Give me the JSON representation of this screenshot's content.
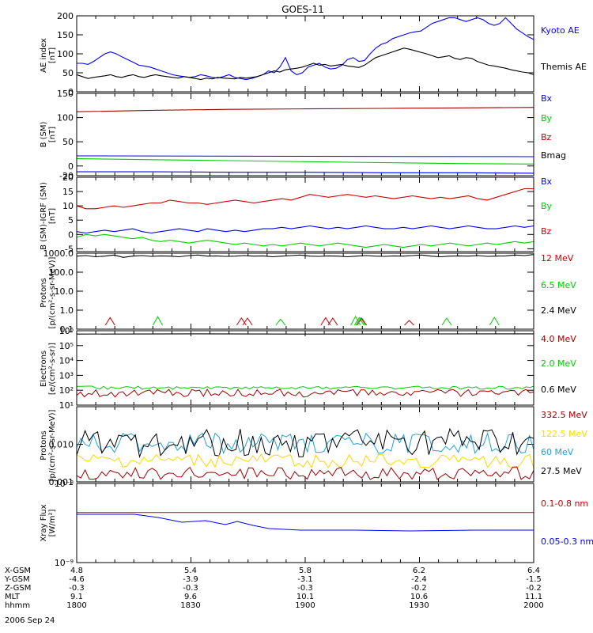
{
  "title": "GOES-11",
  "date_label": "2006 Sep 24",
  "colors": {
    "black": "#000000",
    "blue": "#0000ff",
    "red": "#cc0000",
    "darkred": "#a00000",
    "green": "#00cc00",
    "yellow": "#ffd700",
    "cyan": "#1ea0e0",
    "line_red": "#cc2020"
  },
  "ephemeris": {
    "row_labels": [
      "X-GSM",
      "Y-GSM",
      "Z-GSM",
      "MLT",
      "hhmm"
    ],
    "columns": [
      [
        "4.8",
        "-4.6",
        "-0.3",
        "9.1",
        "1800"
      ],
      [
        "5.4",
        "-3.9",
        "-0.3",
        "9.6",
        "1830"
      ],
      [
        "5.8",
        "-3.1",
        "-0.3",
        "10.1",
        "1900"
      ],
      [
        "6.2",
        "-2.4",
        "-0.2",
        "10.6",
        "1930"
      ],
      [
        "6.4",
        "-1.5",
        "-0.2",
        "11.1",
        "2000"
      ]
    ]
  },
  "chart_data": [
    {
      "type": "line",
      "panel": "ae",
      "ylabel": [
        "AE index",
        "[nT]"
      ],
      "ylim": [
        0,
        200
      ],
      "ytick_values": [
        0,
        50,
        100,
        150,
        200
      ],
      "ytick_labels": [
        "0",
        "50",
        "100",
        "150",
        "200"
      ],
      "series": [
        {
          "name": "Kyoto AE",
          "color": "blue",
          "values": [
            75,
            75,
            72,
            80,
            90,
            100,
            105,
            100,
            92,
            85,
            78,
            70,
            68,
            65,
            60,
            55,
            50,
            45,
            42,
            40,
            38,
            40,
            45,
            42,
            38,
            36,
            40,
            45,
            38,
            35,
            32,
            35,
            40,
            45,
            55,
            50,
            65,
            90,
            55,
            45,
            50,
            65,
            70,
            75,
            65,
            60,
            62,
            70,
            85,
            90,
            80,
            82,
            100,
            115,
            125,
            130,
            140,
            145,
            150,
            155,
            158,
            160,
            170,
            180,
            185,
            190,
            195,
            195,
            190,
            185,
            190,
            195,
            190,
            180,
            175,
            180,
            195,
            180,
            165,
            155,
            145,
            138
          ]
        },
        {
          "name": "Themis AE",
          "color": "black",
          "values": [
            45,
            40,
            35,
            38,
            40,
            42,
            45,
            40,
            38,
            42,
            45,
            40,
            38,
            42,
            45,
            42,
            40,
            38,
            36,
            40,
            38,
            35,
            32,
            36,
            34,
            38,
            36,
            35,
            34,
            38,
            36,
            38,
            40,
            45,
            50,
            55,
            52,
            58,
            60,
            62,
            65,
            70,
            75,
            70,
            72,
            68,
            70,
            72,
            68,
            66,
            64,
            70,
            80,
            90,
            95,
            100,
            105,
            110,
            115,
            112,
            108,
            104,
            100,
            95,
            90,
            92,
            95,
            88,
            85,
            90,
            88,
            80,
            75,
            70,
            68,
            65,
            62,
            58,
            55,
            52,
            50,
            45
          ]
        }
      ]
    },
    {
      "type": "line",
      "panel": "b",
      "ylabel": [
        "B (SM)",
        "[nT]"
      ],
      "ylim": [
        -20,
        150
      ],
      "ytick_values": [
        -20,
        0,
        50,
        100,
        150
      ],
      "ytick_labels": [
        "-20",
        "0",
        "50",
        "100",
        "150"
      ],
      "series": [
        {
          "name": "Bx",
          "color": "darkred",
          "values": [
            112,
            115,
            117,
            118,
            119,
            120,
            121
          ]
        },
        {
          "name": "By",
          "color": "green",
          "values": [
            15,
            13,
            11,
            9,
            7,
            5,
            4
          ]
        },
        {
          "name": "Bz",
          "color": "blue",
          "values": [
            -12,
            -12,
            -13,
            -13,
            -14,
            -14,
            -15
          ]
        },
        {
          "name": "Bmag",
          "color": "black",
          "values": []
        }
      ],
      "legend_colors": [
        "blue",
        "green",
        "red",
        "black"
      ]
    },
    {
      "type": "line",
      "panel": "bdiff",
      "ylabel": [
        "B (SM)-IGRF (SM)",
        "[nT]"
      ],
      "ylim": [
        -6,
        20
      ],
      "ytick_values": [
        -5,
        0,
        5,
        10,
        15,
        20
      ],
      "ytick_labels": [
        "-5",
        "0",
        "5",
        "10",
        "15",
        "20"
      ],
      "series": [
        {
          "name": "Bx",
          "color": "blue",
          "values": [
            1,
            0.5,
            1,
            1.5,
            1,
            1.5,
            2,
            1,
            0.5,
            1,
            1.5,
            2,
            1.5,
            1,
            2,
            1.5,
            1,
            1.5,
            1,
            1.5,
            2,
            2,
            2.5,
            2,
            2.5,
            3,
            2.5,
            2,
            2.5,
            2,
            2.5,
            3,
            2.5,
            2,
            2,
            2.5,
            2,
            2.5,
            3,
            2.5,
            2,
            2.5,
            3,
            2.5,
            2,
            2,
            2.5,
            3,
            2.5,
            3
          ]
        },
        {
          "name": "By",
          "color": "green",
          "values": [
            -1,
            0,
            -0.5,
            0,
            -0.5,
            -1,
            -1.5,
            -1,
            -2,
            -2.5,
            -2,
            -2.5,
            -3,
            -2.5,
            -2,
            -2.5,
            -3,
            -3.5,
            -3,
            -3.5,
            -4,
            -3.5,
            -4,
            -3.5,
            -3,
            -3.5,
            -4,
            -3.5,
            -3,
            -3.5,
            -4,
            -4.5,
            -4,
            -3.5,
            -4,
            -4.5,
            -4,
            -3.5,
            -4,
            -3.5,
            -3,
            -3.5,
            -4,
            -3.5,
            -3,
            -3.5,
            -3,
            -2.5,
            -3,
            -2.5
          ]
        },
        {
          "name": "Bz",
          "color": "red",
          "values": [
            10,
            9,
            9,
            9.5,
            10,
            9.5,
            10,
            10.5,
            11,
            11,
            12,
            11.5,
            11,
            11,
            10.5,
            11,
            11.5,
            12,
            11.5,
            11,
            11.5,
            12,
            12.5,
            12,
            13,
            14,
            13.5,
            13,
            13.5,
            14,
            13.5,
            13,
            13.5,
            13,
            12.5,
            13,
            13.5,
            13,
            12.5,
            13,
            12.5,
            13,
            13.5,
            12.5,
            12,
            13,
            14,
            15,
            16,
            16
          ]
        }
      ]
    },
    {
      "type": "line",
      "panel": "protons_hi",
      "yscale": "log",
      "ylabel": [
        "Protons",
        "[p/(cm²-s-sr-MeV)]"
      ],
      "ylim": [
        0.1,
        1000
      ],
      "ytick_values": [
        0.1,
        1,
        10,
        100,
        1000
      ],
      "ytick_labels": [
        "0.1",
        "1.0",
        "10.0",
        "100.0",
        "1000.0"
      ],
      "series": [
        {
          "name": "12 MeV",
          "color": "red",
          "values": []
        },
        {
          "name": "6.5 MeV",
          "color": "green",
          "values": []
        },
        {
          "name": "2.4 MeV",
          "color": "black",
          "values": [
            700,
            750,
            650,
            700,
            800,
            600,
            700,
            750,
            680,
            720,
            700,
            650,
            750,
            800,
            700,
            720,
            680,
            700,
            750,
            700,
            720,
            650,
            700,
            750,
            800,
            700,
            680,
            720,
            700,
            650,
            700,
            750,
            700,
            680,
            720,
            700,
            750,
            800,
            700,
            650,
            700,
            720,
            700,
            750,
            680,
            700,
            720,
            800,
            750,
            850
          ]
        }
      ]
    },
    {
      "type": "line",
      "panel": "electrons",
      "yscale": "log",
      "ylabel": [
        "Electrons",
        "[e/(cm²-s-sr)]"
      ],
      "ylim": [
        10,
        1000000
      ],
      "ytick_values": [
        10,
        100,
        1000,
        10000,
        100000,
        1000000
      ],
      "ytick_labels": [
        "10¹",
        "10²",
        "10³",
        "10⁴",
        "10⁵",
        "10⁶"
      ],
      "series": [
        {
          "name": "4.0 MeV",
          "color": "darkred",
          "values": []
        },
        {
          "name": "2.0 MeV",
          "color": "green",
          "values": []
        },
        {
          "name": "0.6 MeV",
          "color": "black",
          "values": [
            600000,
            620000,
            600000,
            610000,
            620000
          ]
        }
      ]
    },
    {
      "type": "line",
      "panel": "protons_lo",
      "yscale": "log",
      "ylabel": [
        "Protons",
        "[p/(cm²-s-sr-MeV)]"
      ],
      "ylim": [
        0.001,
        0.1
      ],
      "ytick_values": [
        0.001,
        0.01
      ],
      "ytick_labels": [
        "0.001",
        "0.010"
      ],
      "series": [
        {
          "name": "332.5 MeV",
          "color": "darkred",
          "values": []
        },
        {
          "name": "122.5 MeV",
          "color": "yellow",
          "values": []
        },
        {
          "name": "60 MeV",
          "color": "cyan",
          "values": []
        },
        {
          "name": "27.5 MeV",
          "color": "black",
          "values": []
        }
      ]
    },
    {
      "type": "line",
      "panel": "xray",
      "yscale": "log",
      "ylabel": [
        "Xray Flux",
        "[W/m²]"
      ],
      "ylim": [
        1e-09,
        1e-08
      ],
      "ytick_values": [
        1e-09,
        1e-08
      ],
      "ytick_labels": [
        "10⁻⁹",
        "10⁻⁸"
      ],
      "series": [
        {
          "name": "0.1-0.8 nm",
          "color": "line_red",
          "values": [
            4.3e-09,
            4.3e-09
          ]
        },
        {
          "name": "0.05-0.3 nm",
          "color": "blue",
          "values": []
        }
      ]
    }
  ]
}
